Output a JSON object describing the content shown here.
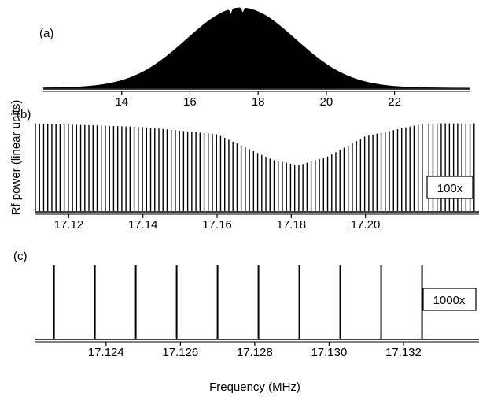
{
  "chart_data": [
    {
      "panel_label": "(a)",
      "type": "area",
      "description_of_shape": "dense comb under a Gaussian envelope",
      "x_ticks": [
        "14",
        "16",
        "18",
        "20",
        "22"
      ],
      "x_tick_values": [
        14,
        16,
        18,
        20,
        22
      ],
      "xlim": [
        11.7,
        24.2
      ],
      "envelope": {
        "center": 17.5,
        "sigma": 1.6,
        "peak": 1.0,
        "sharp_dips_at": [
          17.2,
          17.55
        ]
      },
      "ylim": [
        0,
        1.05
      ]
    },
    {
      "panel_label": "(b)",
      "type": "bar",
      "x_ticks": [
        "17.12",
        "17.14",
        "17.16",
        "17.18",
        "17.20"
      ],
      "x_tick_values": [
        17.12,
        17.14,
        17.16,
        17.18,
        17.2
      ],
      "xlim": [
        17.111,
        17.216
      ],
      "line_spacing": 0.00111,
      "envelope": [
        [
          17.111,
          0.96
        ],
        [
          17.14,
          0.92
        ],
        [
          17.16,
          0.84
        ],
        [
          17.175,
          0.56
        ],
        [
          17.182,
          0.5
        ],
        [
          17.19,
          0.6
        ],
        [
          17.2,
          0.82
        ],
        [
          17.216,
          0.96
        ]
      ],
      "ylim": [
        0,
        1
      ],
      "scale_box": "100x"
    },
    {
      "panel_label": "(c)",
      "type": "bar",
      "x_ticks": [
        "17.124",
        "17.126",
        "17.128",
        "17.130",
        "17.132"
      ],
      "x_tick_values": [
        17.124,
        17.126,
        17.128,
        17.13,
        17.132
      ],
      "xlim": [
        17.1221,
        17.1338
      ],
      "lines_x": [
        17.1226,
        17.1237,
        17.1248,
        17.1259,
        17.127,
        17.1281,
        17.1292,
        17.1303,
        17.1314,
        17.1325
      ],
      "lines_y": [
        1,
        1,
        1,
        1,
        1,
        1,
        1,
        1,
        1,
        1
      ],
      "ylim": [
        0,
        1.05
      ],
      "scale_box": "1000x"
    }
  ],
  "labels": {
    "ylabel": "Rf power (linear units)",
    "xlabel": "Frequency (MHz)"
  }
}
